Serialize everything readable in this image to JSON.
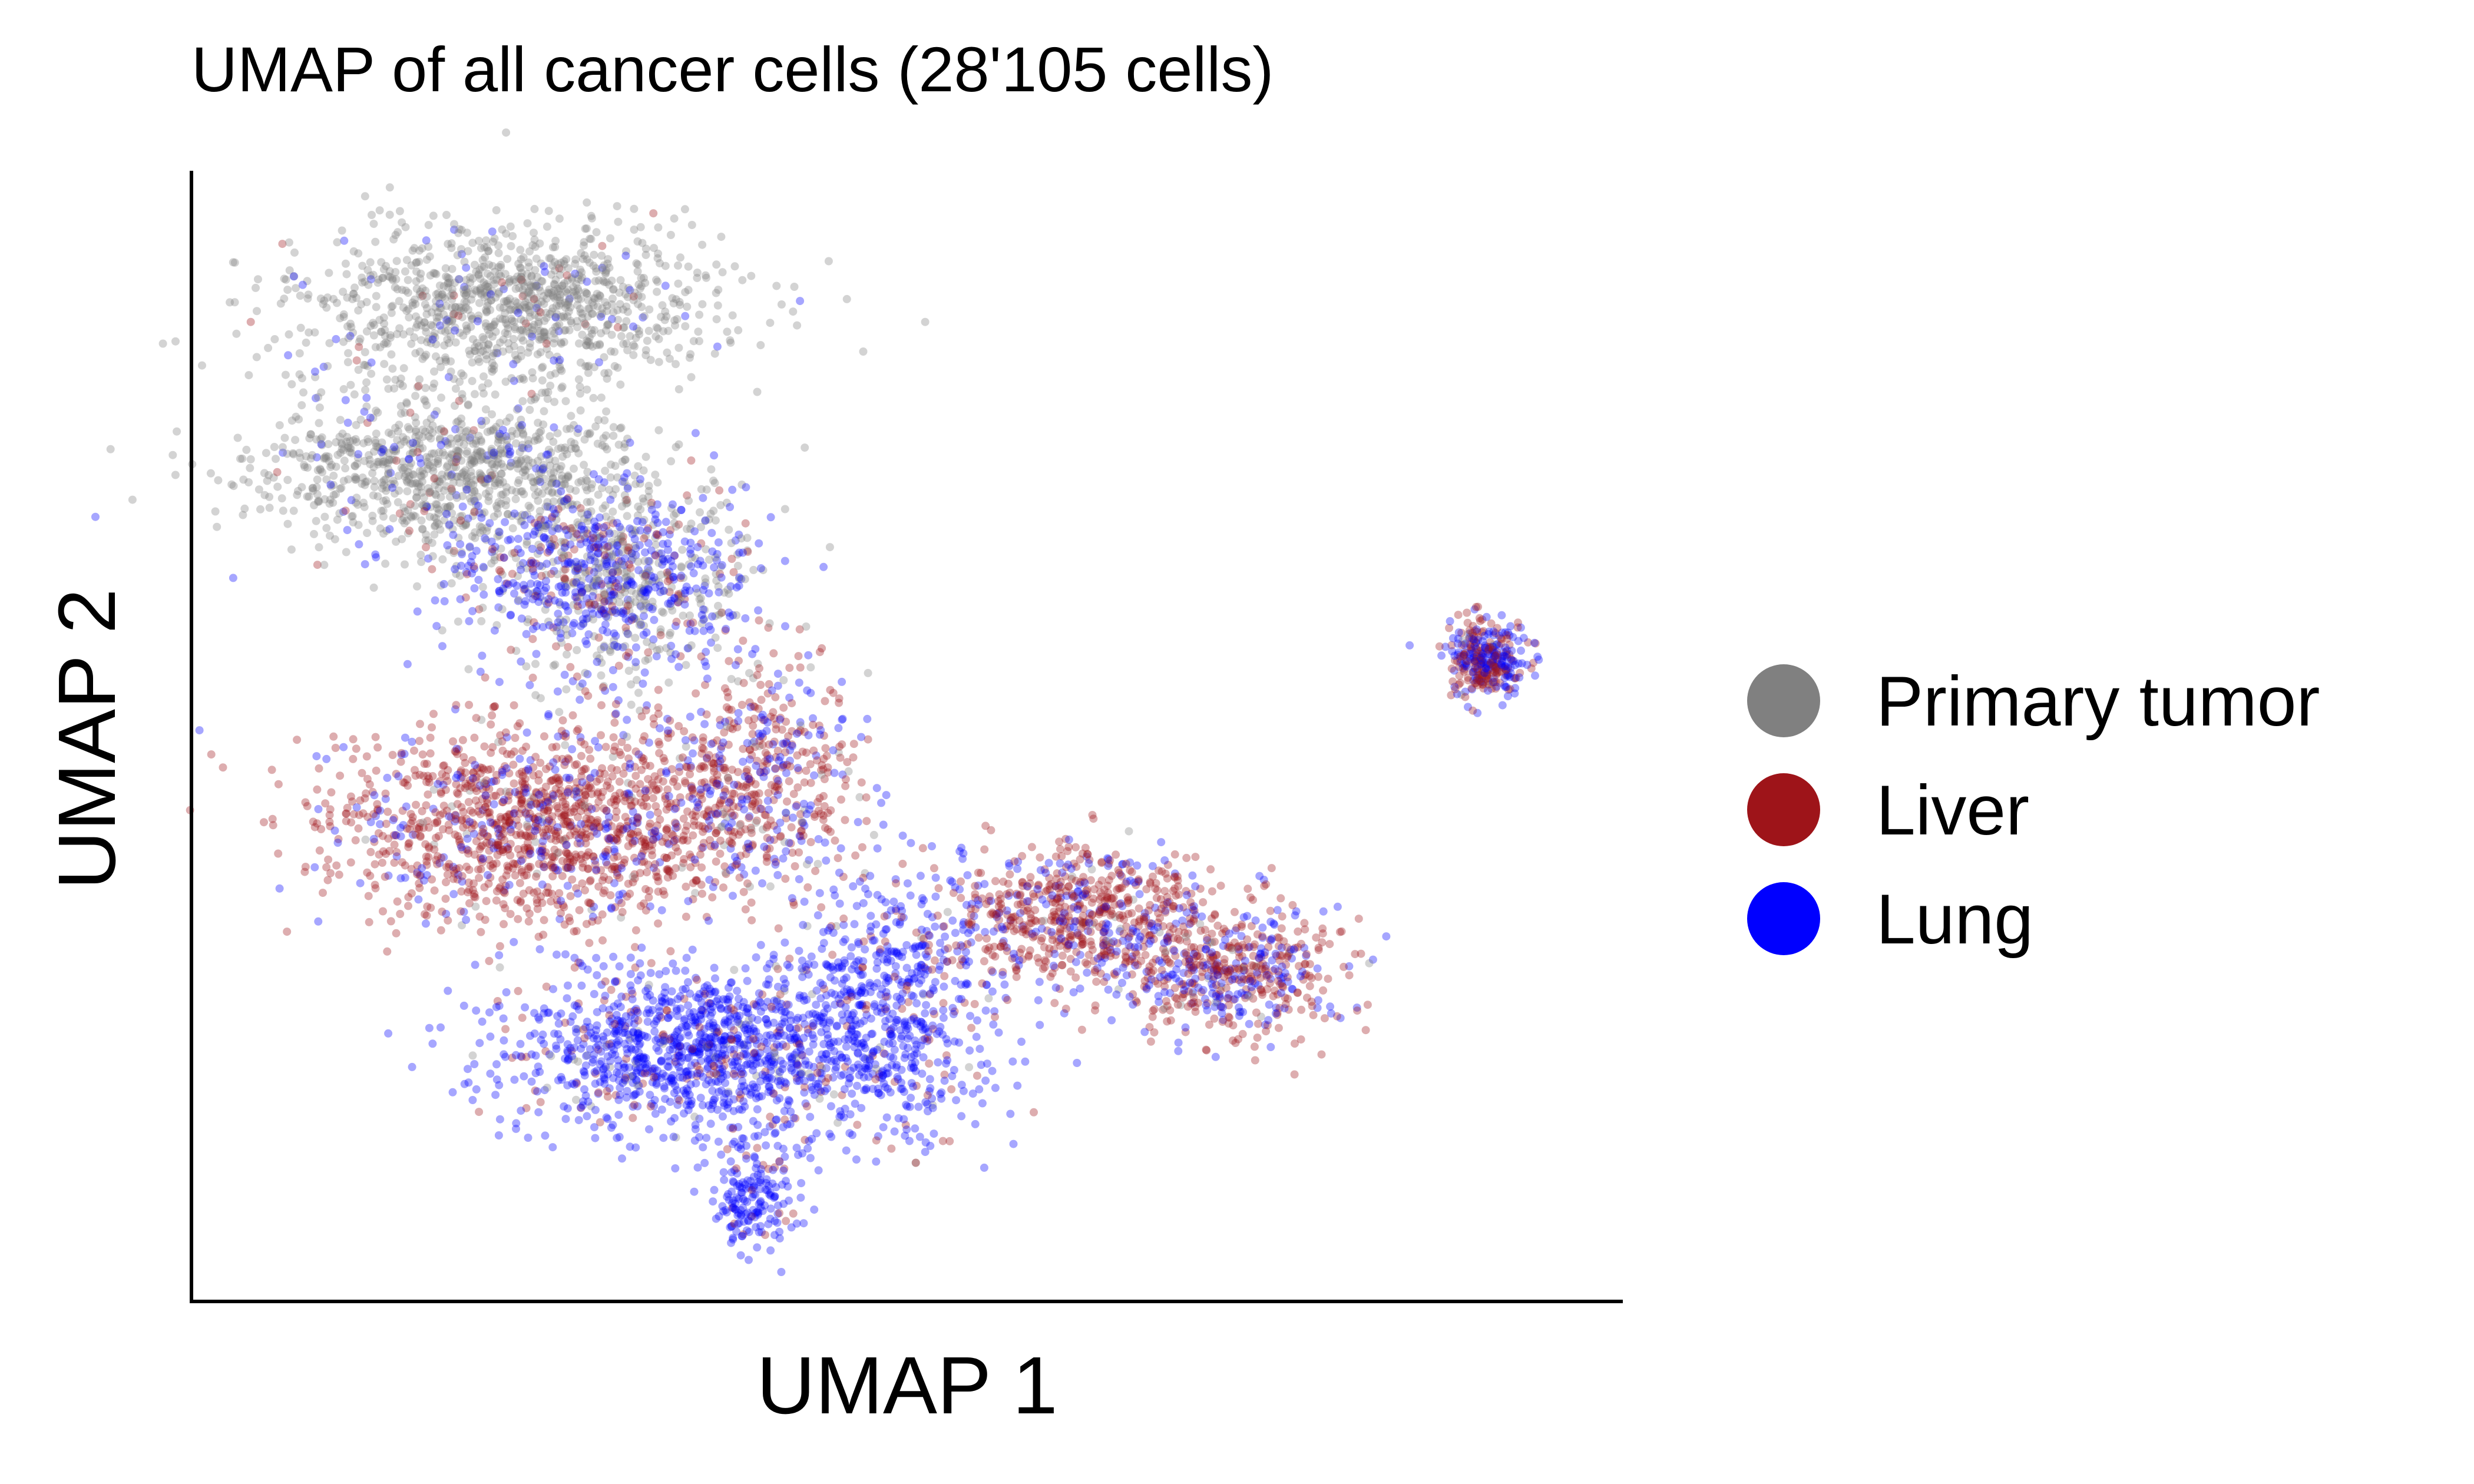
{
  "chart_data": {
    "type": "scatter",
    "title": "UMAP of all cancer cells (28'105 cells)",
    "xlabel": "UMAP 1",
    "ylabel": "UMAP 2",
    "x_ticks": [],
    "y_ticks": [],
    "grid": false,
    "spines": [
      "left",
      "bottom"
    ],
    "legend_position": "right",
    "series": [
      {
        "name": "Primary tumor",
        "color": "#808080"
      },
      {
        "name": "Liver",
        "color": "#9e1419"
      },
      {
        "name": "Lung",
        "color": "#0000ff"
      }
    ]
  }
}
